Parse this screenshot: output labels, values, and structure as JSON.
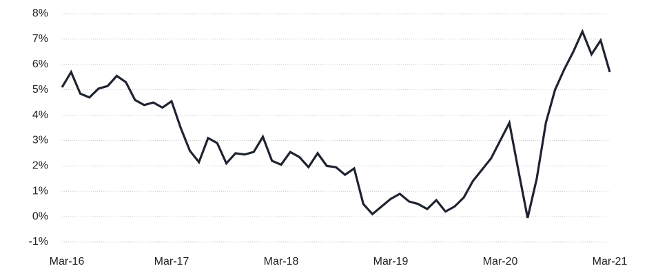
{
  "chart_data": {
    "type": "line",
    "categories": [
      "Mar-16",
      null,
      null,
      null,
      null,
      null,
      null,
      null,
      null,
      null,
      null,
      null,
      "Mar-17",
      null,
      null,
      null,
      null,
      null,
      null,
      null,
      null,
      null,
      null,
      null,
      "Mar-18",
      null,
      null,
      null,
      null,
      null,
      null,
      null,
      null,
      null,
      null,
      null,
      "Mar-19",
      null,
      null,
      null,
      null,
      null,
      null,
      null,
      null,
      null,
      null,
      null,
      "Mar-20",
      null,
      null,
      null,
      null,
      null,
      null,
      null,
      null,
      null,
      null,
      null,
      "Mar-21"
    ],
    "values": [
      5.1,
      5.7,
      4.85,
      4.7,
      5.05,
      5.15,
      5.55,
      5.3,
      4.6,
      4.4,
      4.5,
      4.3,
      4.55,
      3.5,
      2.6,
      2.15,
      3.1,
      2.9,
      2.1,
      2.5,
      2.45,
      2.55,
      3.15,
      2.2,
      2.05,
      2.55,
      2.35,
      1.95,
      2.5,
      2.0,
      1.95,
      1.65,
      1.9,
      0.5,
      0.1,
      0.4,
      0.7,
      0.9,
      0.6,
      0.5,
      0.3,
      0.65,
      0.2,
      0.4,
      0.75,
      1.4,
      1.85,
      2.3,
      3.0,
      3.7,
      1.8,
      -0.05,
      1.5,
      3.7,
      5.0,
      5.8,
      6.5,
      7.3,
      6.4,
      6.95,
      5.7
    ],
    "color": "#1e2330",
    "ylim": [
      -1,
      8
    ],
    "yticks": [
      {
        "value": -1,
        "label": "-1%"
      },
      {
        "value": 0,
        "label": "0%"
      },
      {
        "value": 1,
        "label": "1%"
      },
      {
        "value": 2,
        "label": "2%"
      },
      {
        "value": 3,
        "label": "3%"
      },
      {
        "value": 4,
        "label": "4%"
      },
      {
        "value": 5,
        "label": "5%"
      },
      {
        "value": 6,
        "label": "6%"
      },
      {
        "value": 7,
        "label": "7%"
      },
      {
        "value": 8,
        "label": "8%"
      }
    ],
    "grid": true
  }
}
